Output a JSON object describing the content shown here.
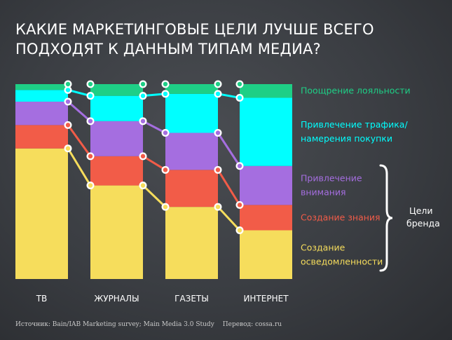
{
  "title_lines": [
    "КАКИЕ МАРКЕТИНГОВЫЕ ЦЕЛИ ЛУЧШЕ ВСЕГО",
    "ПОДХОДЯТ К ДАННЫМ ТИПАМ МЕДИА?"
  ],
  "brackets": {
    "brand_label_lines": [
      "Цели",
      "бренда"
    ]
  },
  "source": {
    "text": "Источник: Bain/IAB Marketing survey; Main Media 3.0 Study",
    "translation": "Перевод: cossa.ru"
  },
  "colors": {
    "awareness": "#f6dd5c",
    "knowledge": "#f25c48",
    "attention": "#a56ee0",
    "traffic": "#00ffff",
    "loyalty": "#1ecf86"
  },
  "chart_data": {
    "type": "bar",
    "stacked": true,
    "normalized_to_percent": true,
    "categories": [
      "ТВ",
      "ЖУРНАЛЫ",
      "ГАЗЕТЫ",
      "ИНТЕРНЕТ"
    ],
    "ylim": [
      0,
      100
    ],
    "grid": false,
    "legend_position": "right",
    "series": [
      {
        "name": "Создание осведомленности",
        "label_lines": [
          "Создание",
          "осведомленности"
        ],
        "color_key": "awareness",
        "values": [
          67,
          48,
          37,
          25
        ]
      },
      {
        "name": "Создание знания",
        "label_lines": [
          "Создание знания"
        ],
        "color_key": "knowledge",
        "values": [
          12,
          15,
          19,
          13
        ]
      },
      {
        "name": "Привлечение внимания",
        "label_lines": [
          "Привлечение",
          "внимания"
        ],
        "color_key": "attention",
        "values": [
          12,
          18,
          19,
          20
        ]
      },
      {
        "name": "Привлечение трафика/намерения покупки",
        "label_lines": [
          "Привлечение трафика/",
          "намерения покупки"
        ],
        "color_key": "traffic",
        "values": [
          6,
          13,
          20,
          35
        ]
      },
      {
        "name": "Поощрение лояльности",
        "label_lines": [
          "Поощрение лояльности"
        ],
        "color_key": "loyalty",
        "values": [
          3,
          6,
          5,
          7
        ]
      }
    ]
  }
}
